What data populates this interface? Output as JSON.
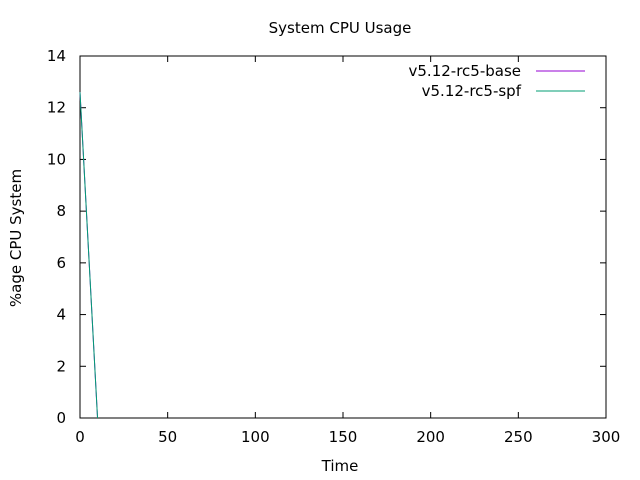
{
  "chart_data": {
    "type": "line",
    "title": "System CPU Usage",
    "xlabel": "Time",
    "ylabel": "%age CPU System",
    "xlim": [
      0,
      300
    ],
    "ylim": [
      0,
      14
    ],
    "xticks": [
      0,
      50,
      100,
      150,
      200,
      250,
      300
    ],
    "yticks": [
      0,
      2,
      4,
      6,
      8,
      10,
      12,
      14
    ],
    "grid": false,
    "legend_position": "top-right",
    "series": [
      {
        "name": "v5.12-rc5-base",
        "color": "#9400d3",
        "x": [
          0,
          10
        ],
        "y": [
          12.6,
          0
        ]
      },
      {
        "name": "v5.12-rc5-spf",
        "color": "#009e73",
        "x": [
          0,
          10
        ],
        "y": [
          12.6,
          0
        ]
      }
    ]
  }
}
